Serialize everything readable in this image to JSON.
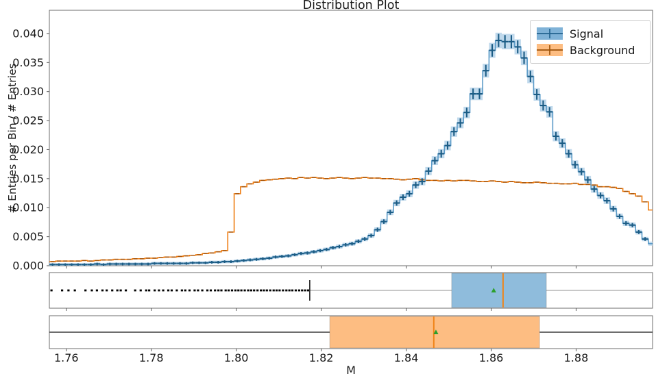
{
  "figure": {
    "title": "Distribution Plot",
    "xlabel": "M",
    "ylabel": "# Entries per Bin / # Entries"
  },
  "legend": {
    "items": [
      {
        "label": "Signal",
        "fill": "#7fb2d7",
        "line": "#23638f"
      },
      {
        "label": "Background",
        "fill": "#fdbd82",
        "line": "#9c5208"
      }
    ]
  },
  "chart_data": {
    "type": "bar",
    "subtype": "step-histogram-with-boxplots",
    "title": "Distribution Plot",
    "xlabel": "M",
    "ylabel": "# Entries per Bin / # Entries",
    "xlim": [
      1.756,
      1.898
    ],
    "ylim": [
      0,
      0.044
    ],
    "grid": false,
    "legend_position": "upper right",
    "x_tick_values": [
      1.76,
      1.78,
      1.8,
      1.82,
      1.84,
      1.86,
      1.88
    ],
    "x_tick_labels": [
      "1.76",
      "1.78",
      "1.80",
      "1.82",
      "1.84",
      "1.86",
      "1.88"
    ],
    "y_tick_values": [
      0.0,
      0.005,
      0.01,
      0.015,
      0.02,
      0.025,
      0.03,
      0.035,
      0.04
    ],
    "y_tick_labels": [
      "0.000",
      "0.005",
      "0.010",
      "0.015",
      "0.020",
      "0.025",
      "0.030",
      "0.035",
      "0.040"
    ],
    "bin_start": 1.756,
    "bin_width": 0.0015,
    "series": [
      {
        "name": "Signal",
        "values": [
          0.0002,
          0.0002,
          0.0002,
          0.0002,
          0.0002,
          0.0002,
          0.0002,
          0.0003,
          0.0002,
          0.0003,
          0.0003,
          0.0003,
          0.0003,
          0.0003,
          0.0003,
          0.0003,
          0.0004,
          0.0004,
          0.0004,
          0.0004,
          0.0004,
          0.0004,
          0.0005,
          0.0005,
          0.0005,
          0.0006,
          0.0006,
          0.0007,
          0.0007,
          0.0008,
          0.0009,
          0.001,
          0.0011,
          0.0012,
          0.0013,
          0.0015,
          0.0016,
          0.0017,
          0.0019,
          0.0021,
          0.0022,
          0.0024,
          0.0026,
          0.0028,
          0.0031,
          0.0033,
          0.0036,
          0.0038,
          0.0042,
          0.0046,
          0.0052,
          0.0062,
          0.0076,
          0.0092,
          0.0108,
          0.0118,
          0.0124,
          0.0139,
          0.0145,
          0.0163,
          0.0181,
          0.0193,
          0.0207,
          0.0231,
          0.0246,
          0.0264,
          0.0296,
          0.0296,
          0.0336,
          0.0371,
          0.0388,
          0.0386,
          0.0386,
          0.0377,
          0.0358,
          0.0326,
          0.0295,
          0.0276,
          0.0265,
          0.0223,
          0.0211,
          0.0193,
          0.0174,
          0.0162,
          0.0148,
          0.0132,
          0.0121,
          0.0112,
          0.0098,
          0.0085,
          0.0073,
          0.007,
          0.0058,
          0.0046,
          0.0038
        ]
      },
      {
        "name": "Background",
        "values": [
          0.0007,
          0.0008,
          0.0008,
          0.0008,
          0.0008,
          0.0009,
          0.0008,
          0.0009,
          0.001,
          0.001,
          0.0011,
          0.0011,
          0.0011,
          0.0012,
          0.0012,
          0.0013,
          0.0013,
          0.0014,
          0.0015,
          0.0015,
          0.0016,
          0.0017,
          0.0018,
          0.0019,
          0.0021,
          0.0022,
          0.0024,
          0.0026,
          0.0058,
          0.0124,
          0.0136,
          0.0141,
          0.0144,
          0.0147,
          0.0148,
          0.0149,
          0.015,
          0.0151,
          0.015,
          0.0152,
          0.0151,
          0.0152,
          0.0151,
          0.015,
          0.0151,
          0.0152,
          0.0151,
          0.015,
          0.0151,
          0.0152,
          0.0151,
          0.0151,
          0.015,
          0.015,
          0.0149,
          0.0148,
          0.0149,
          0.015,
          0.0148,
          0.0147,
          0.0147,
          0.0146,
          0.0147,
          0.0146,
          0.0147,
          0.0147,
          0.0146,
          0.0145,
          0.0145,
          0.0146,
          0.0145,
          0.0144,
          0.0145,
          0.0144,
          0.0143,
          0.0143,
          0.0144,
          0.0143,
          0.0142,
          0.0142,
          0.0141,
          0.0141,
          0.0142,
          0.014,
          0.014,
          0.0139,
          0.0136,
          0.0136,
          0.0135,
          0.0133,
          0.0128,
          0.0124,
          0.012,
          0.011,
          0.0096
        ]
      }
    ],
    "boxplots": [
      {
        "name": "Signal",
        "whisker_low": 1.8173,
        "q1": 1.8507,
        "median": 1.8628,
        "q3": 1.873,
        "whisker_high": 1.898,
        "mean": 1.8606,
        "fliers": [
          1.7565,
          1.759,
          1.7605,
          1.762,
          1.7645,
          1.766,
          1.7672,
          1.7685,
          1.7695,
          1.7708,
          1.772,
          1.7728,
          1.774,
          1.7762,
          1.7775,
          1.7788,
          1.7795,
          1.7808,
          1.7818,
          1.7828,
          1.784,
          1.7848,
          1.786,
          1.7872,
          1.788,
          1.789,
          1.7902,
          1.791,
          1.792,
          1.7932,
          1.794,
          1.795,
          1.7958,
          1.7965,
          1.7975,
          1.7982,
          1.799,
          1.7998,
          1.8005,
          1.8012,
          1.802,
          1.8028,
          1.8035,
          1.8042,
          1.805,
          1.8058,
          1.8065,
          1.8072,
          1.808,
          1.8088,
          1.8095,
          1.8102,
          1.811,
          1.8118,
          1.8125,
          1.8132,
          1.814,
          1.8148,
          1.8155,
          1.8162,
          1.8169
        ]
      },
      {
        "name": "Background",
        "whisker_low": 1.756,
        "q1": 1.822,
        "median": 1.8465,
        "q3": 1.8714,
        "whisker_high": 1.898,
        "mean": 1.847,
        "fliers": []
      }
    ],
    "colors": {
      "signal_line": "#5b9bc8",
      "signal_fill": "#b9d5ea",
      "signal_marker": "#1b5c85",
      "background_line": "#ee7b0f",
      "background_marker": "#a8560b",
      "signal_box_fill": "#8fbcdc",
      "background_box_fill": "#fdbd82",
      "median_line": "#f08418",
      "mean_marker": "#2ca02c",
      "flier": "#000000",
      "whisker_gray": "#b5b5b5",
      "whisker_dark": "#3f3f3f",
      "spine": "#6e6e6e"
    }
  }
}
